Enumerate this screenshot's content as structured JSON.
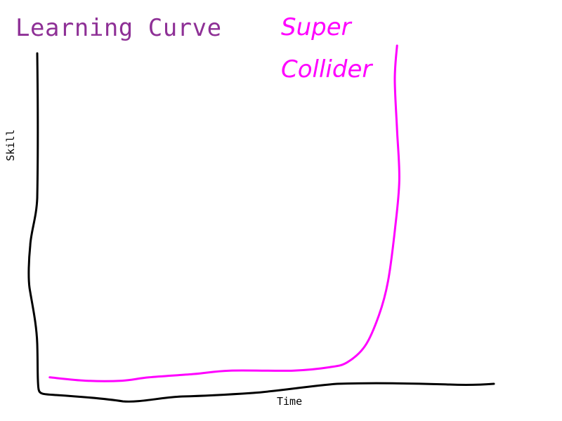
{
  "chart_data": {
    "type": "line",
    "title": "Learning Curve",
    "xlabel": "Time",
    "ylabel": "Skill",
    "xlim": [
      0,
      100
    ],
    "ylim": [
      0,
      100
    ],
    "grid": false,
    "legend": "top-center",
    "series": [
      {
        "name": "Super Collider",
        "color": "#ff00ff",
        "points": [
          [
            2,
            1.5
          ],
          [
            10,
            0.5
          ],
          [
            18,
            0.5
          ],
          [
            24,
            1.5
          ],
          [
            34,
            2.5
          ],
          [
            42,
            3.5
          ],
          [
            56,
            3.5
          ],
          [
            64,
            4.5
          ],
          [
            68,
            6
          ],
          [
            72,
            11
          ],
          [
            75,
            20
          ],
          [
            77,
            30
          ],
          [
            78.5,
            45
          ],
          [
            79.5,
            60
          ],
          [
            79,
            75
          ],
          [
            78.5,
            90
          ],
          [
            79,
            100
          ]
        ]
      }
    ],
    "axis_color": "#000000",
    "title_color": "#8e3096"
  }
}
